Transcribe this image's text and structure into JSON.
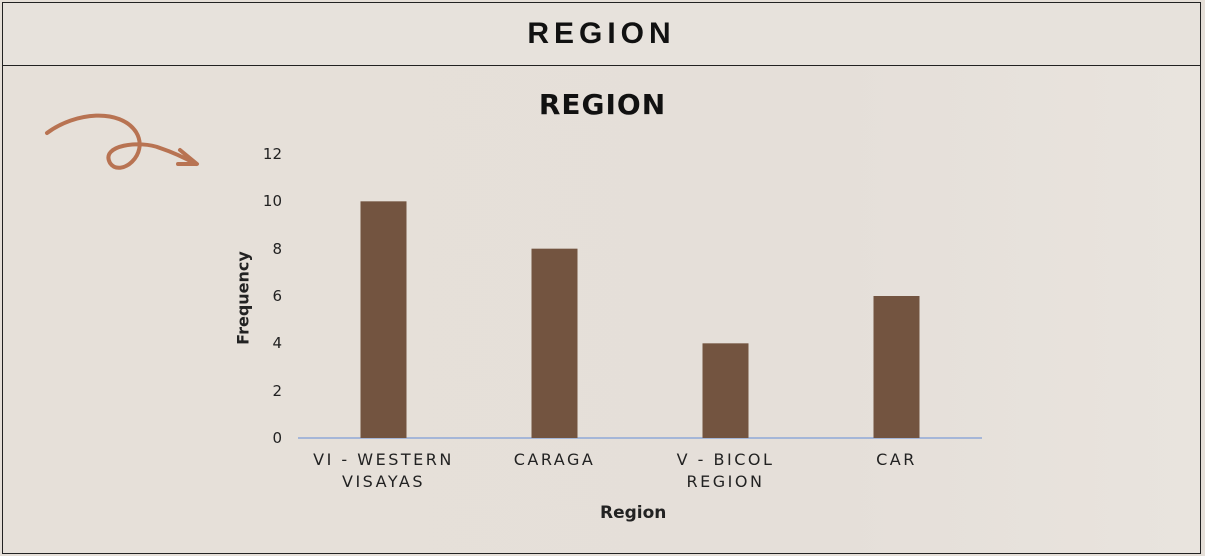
{
  "header": {
    "title": "REGION"
  },
  "chart_data": {
    "type": "bar",
    "title": "REGION",
    "x_label": "Region",
    "y_label": "Frequency",
    "categories": [
      "VI - WESTERN VISAYAS",
      "CARAGA",
      "V - BICOL REGION",
      "CAR"
    ],
    "values": [
      10,
      8,
      4,
      6
    ],
    "color": "#735440",
    "ylim": [
      0,
      12
    ],
    "yticks": [
      0,
      2,
      4,
      6,
      8,
      10,
      12
    ],
    "grid": false
  }
}
